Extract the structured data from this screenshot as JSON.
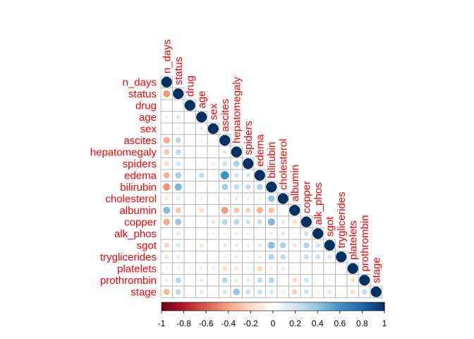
{
  "chart_data": {
    "type": "heatmap",
    "variables": [
      "n_days",
      "status",
      "drug",
      "age",
      "sex",
      "ascites",
      "hepatomegaly",
      "spiders",
      "edema",
      "bilirubin",
      "cholesterol",
      "albumin",
      "copper",
      "alk_phos",
      "sgot",
      "tryglicerides",
      "platelets",
      "prothrombin",
      "stage"
    ],
    "matrix_lower": [
      [
        1
      ],
      [
        -0.43,
        1
      ],
      [
        -0.03,
        0.02,
        1
      ],
      [
        -0.1,
        0.18,
        0.02,
        1
      ],
      [
        -0.05,
        0.1,
        0.02,
        0.12,
        1
      ],
      [
        -0.38,
        0.28,
        0.01,
        0.1,
        0.02,
        1
      ],
      [
        -0.27,
        0.26,
        0.03,
        0.03,
        0.03,
        0.15,
        1
      ],
      [
        -0.2,
        0.2,
        0.02,
        0.05,
        -0.12,
        0.22,
        0.32,
        1
      ],
      [
        -0.35,
        0.33,
        0.03,
        0.25,
        0.06,
        0.6,
        0.2,
        0.18,
        1
      ],
      [
        -0.45,
        0.45,
        0.03,
        0.03,
        0.03,
        0.35,
        0.25,
        0.25,
        0.32,
        1
      ],
      [
        -0.14,
        0.15,
        -0.02,
        -0.1,
        0.02,
        0.08,
        0.12,
        0.1,
        0.1,
        0.4,
        1
      ],
      [
        0.43,
        -0.28,
        -0.03,
        -0.2,
        -0.03,
        -0.42,
        -0.28,
        -0.23,
        -0.35,
        -0.3,
        -0.06,
        1
      ],
      [
        -0.38,
        0.37,
        0.02,
        0.05,
        0.15,
        0.28,
        0.28,
        0.2,
        0.22,
        0.45,
        0.15,
        -0.2,
        1
      ],
      [
        0.04,
        0.15,
        0.02,
        -0.04,
        0.06,
        0.07,
        0.1,
        0.08,
        0.06,
        0.1,
        0.15,
        -0.05,
        0.2,
        1
      ],
      [
        -0.23,
        0.18,
        -0.05,
        -0.15,
        0.02,
        0.15,
        0.14,
        0.11,
        0.14,
        0.42,
        0.32,
        -0.15,
        0.3,
        0.2,
        1
      ],
      [
        -0.17,
        0.15,
        -0.02,
        0.02,
        0.03,
        0.09,
        0.12,
        0.09,
        0.12,
        0.3,
        0.25,
        -0.05,
        0.22,
        0.22,
        0.18,
        1
      ],
      [
        0.1,
        -0.1,
        -0.07,
        -0.12,
        -0.1,
        -0.18,
        -0.15,
        -0.1,
        -0.22,
        -0.1,
        0.12,
        0.08,
        -0.08,
        0.1,
        -0.06,
        0.05,
        1
      ],
      [
        -0.12,
        0.28,
        0.03,
        0.12,
        0.05,
        0.28,
        0.12,
        0.15,
        0.25,
        0.3,
        0.03,
        -0.2,
        0.2,
        0.06,
        0.08,
        0.02,
        -0.18,
        1
      ],
      [
        -0.33,
        0.26,
        0.03,
        0.15,
        0.05,
        0.18,
        0.4,
        0.22,
        0.22,
        0.18,
        0.1,
        -0.25,
        0.2,
        0.1,
        0.15,
        0.05,
        -0.2,
        0.25,
        1
      ]
    ],
    "color_scale": {
      "min": -1,
      "max": 1,
      "ticks": [
        "-1",
        "-0.8",
        "-0.6",
        "-0.4",
        "-0.2",
        "0",
        "0.2",
        "0.4",
        "0.6",
        "0.8",
        "1"
      ],
      "stops": [
        "#67001f",
        "#b2182b",
        "#d6604d",
        "#f4a582",
        "#fddbc7",
        "#ffffff",
        "#d1e5f0",
        "#92c5de",
        "#4393c3",
        "#2166ac",
        "#053061"
      ]
    },
    "label_color": "#ff0000",
    "grid_color": "#b3b3b3"
  }
}
